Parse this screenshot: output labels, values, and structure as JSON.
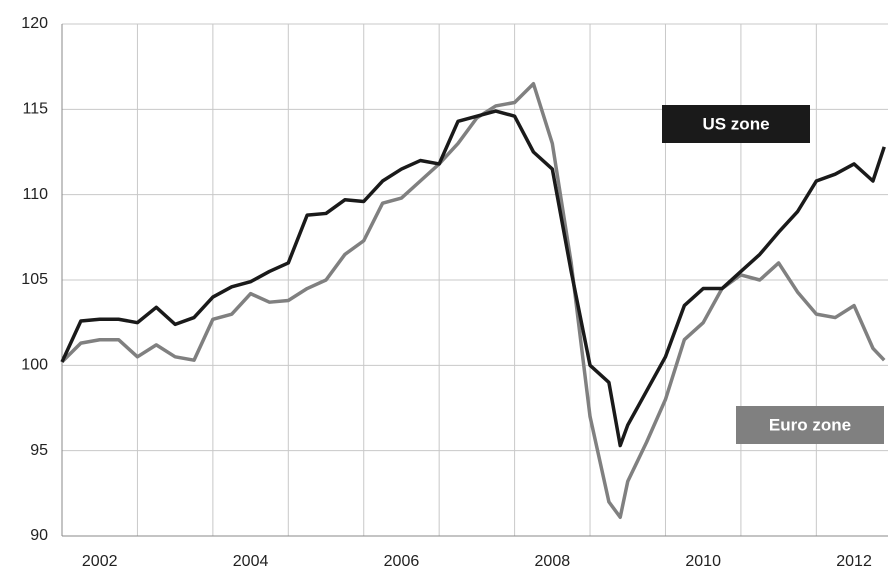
{
  "chart_data": {
    "type": "line",
    "x": [
      2002.0,
      2002.25,
      2002.5,
      2002.75,
      2003.0,
      2003.25,
      2003.5,
      2003.75,
      2004.0,
      2004.25,
      2004.5,
      2004.75,
      2005.0,
      2005.25,
      2005.5,
      2005.75,
      2006.0,
      2006.25,
      2006.5,
      2006.75,
      2007.0,
      2007.25,
      2007.5,
      2007.75,
      2008.0,
      2008.25,
      2008.5,
      2008.75,
      2009.0,
      2009.25,
      2009.4,
      2009.5,
      2009.75,
      2010.0,
      2010.25,
      2010.5,
      2010.75,
      2011.0,
      2011.25,
      2011.5,
      2011.75,
      2012.0,
      2012.25,
      2012.5,
      2012.75,
      2012.9
    ],
    "series": [
      {
        "name": "US zone",
        "color": "#1a1a1a",
        "values": [
          100.2,
          102.6,
          102.7,
          102.7,
          102.5,
          103.4,
          102.4,
          102.8,
          104.0,
          104.6,
          104.9,
          105.5,
          106.0,
          108.8,
          108.9,
          109.7,
          109.6,
          110.8,
          111.5,
          112.0,
          111.8,
          114.3,
          114.6,
          114.9,
          114.6,
          112.5,
          111.5,
          105.5,
          100.0,
          99.0,
          95.3,
          96.5,
          98.5,
          100.5,
          103.5,
          104.5,
          104.5,
          105.5,
          106.5,
          107.8,
          109.0,
          110.8,
          111.2,
          111.8,
          110.8,
          112.8
        ]
      },
      {
        "name": "Euro zone",
        "color": "#808080",
        "values": [
          100.2,
          101.3,
          101.5,
          101.5,
          100.5,
          101.2,
          100.5,
          100.3,
          102.7,
          103.0,
          104.2,
          103.7,
          103.8,
          104.5,
          105.0,
          106.5,
          107.3,
          109.5,
          109.8,
          110.8,
          111.8,
          113.0,
          114.5,
          115.2,
          115.4,
          116.5,
          113.0,
          106.0,
          97.0,
          92.0,
          91.1,
          93.2,
          95.5,
          98.0,
          101.5,
          102.5,
          104.5,
          105.3,
          105.0,
          106.0,
          104.3,
          103.0,
          102.8,
          103.5,
          101.0,
          100.3
        ]
      }
    ],
    "xlim": [
      2002.0,
      2012.95
    ],
    "xticks": [
      {
        "value": 2002.5,
        "label": "2002"
      },
      {
        "value": 2004.5,
        "label": "2004"
      },
      {
        "value": 2006.5,
        "label": "2006"
      },
      {
        "value": 2008.5,
        "label": "2008"
      },
      {
        "value": 2010.5,
        "label": "2010"
      },
      {
        "value": 2012.5,
        "label": "2012"
      }
    ],
    "xgrid": [
      2002,
      2003,
      2004,
      2005,
      2006,
      2007,
      2008,
      2009,
      2010,
      2011,
      2012
    ],
    "ylim": [
      90,
      120
    ],
    "yticks": [
      90,
      95,
      100,
      105,
      110,
      115,
      120
    ],
    "grid": true
  }
}
